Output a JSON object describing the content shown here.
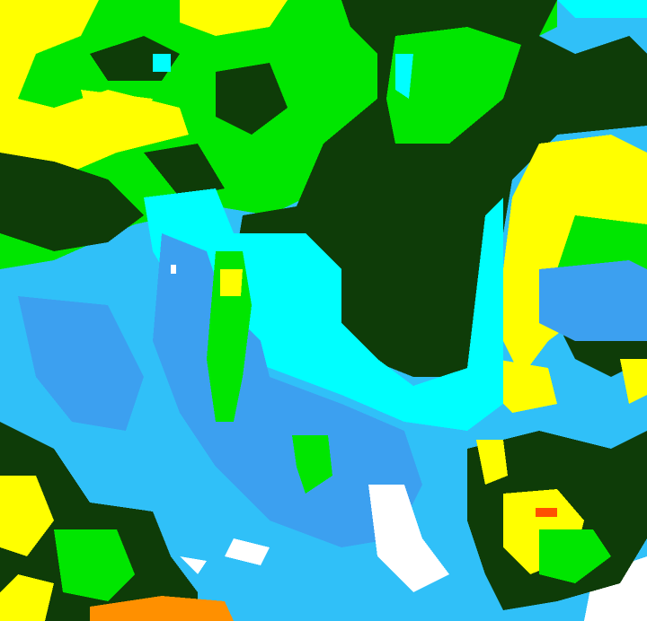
{
  "map": {
    "palette": {
      "dark_green": "#0e3c08",
      "green": "#00e600",
      "yellow": "#ffff00",
      "cyan": "#00ffff",
      "light_blue": "#30c0f8",
      "blue": "#3ca0f0",
      "white": "#ffffff",
      "orange": "#ff9000",
      "red_orange": "#ff5000"
    }
  }
}
